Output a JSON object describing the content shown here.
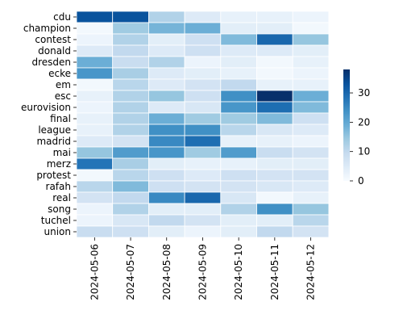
{
  "chart_data": {
    "type": "heatmap",
    "title": "",
    "xlabel": "",
    "ylabel": "",
    "x": [
      "2024-05-06",
      "2024-05-07",
      "2024-05-08",
      "2024-05-09",
      "2024-05-10",
      "2024-05-11",
      "2024-05-12"
    ],
    "y": [
      "cdu",
      "champion",
      "contest",
      "donald",
      "dresden",
      "ecke",
      "em",
      "esc",
      "eurovision",
      "final",
      "league",
      "madrid",
      "mai",
      "merz",
      "protest",
      "rafah",
      "real",
      "song",
      "tuchel",
      "union"
    ],
    "values": [
      [
        33,
        33,
        12,
        5,
        3,
        3,
        2
      ],
      [
        1,
        14,
        18,
        19,
        4,
        4,
        1
      ],
      [
        2,
        12,
        4,
        8,
        17,
        30,
        15
      ],
      [
        5,
        10,
        5,
        8,
        5,
        5,
        4
      ],
      [
        19,
        9,
        12,
        2,
        4,
        1,
        3
      ],
      [
        23,
        13,
        5,
        4,
        3,
        1,
        2
      ],
      [
        1,
        11,
        5,
        7,
        10,
        3,
        3
      ],
      [
        3,
        12,
        15,
        8,
        24,
        38,
        19
      ],
      [
        2,
        12,
        5,
        6,
        23,
        29,
        17
      ],
      [
        3,
        12,
        19,
        14,
        14,
        17,
        8
      ],
      [
        3,
        12,
        24,
        24,
        11,
        6,
        5
      ],
      [
        5,
        7,
        25,
        29,
        3,
        3,
        2
      ],
      [
        15,
        22,
        23,
        14,
        22,
        9,
        7
      ],
      [
        28,
        13,
        4,
        3,
        3,
        4,
        4
      ],
      [
        1,
        11,
        8,
        5,
        8,
        7,
        7
      ],
      [
        11,
        17,
        8,
        7,
        7,
        6,
        5
      ],
      [
        7,
        10,
        25,
        30,
        6,
        1,
        3
      ],
      [
        2,
        12,
        4,
        4,
        12,
        24,
        15
      ],
      [
        2,
        6,
        10,
        7,
        4,
        4,
        11
      ],
      [
        9,
        8,
        4,
        2,
        4,
        10,
        7
      ]
    ],
    "vmin": 0,
    "vmax": 38,
    "colormap": "Blues",
    "colorbar_ticks": [
      0,
      10,
      20,
      30
    ],
    "grid_line_color": "#ffffff"
  }
}
